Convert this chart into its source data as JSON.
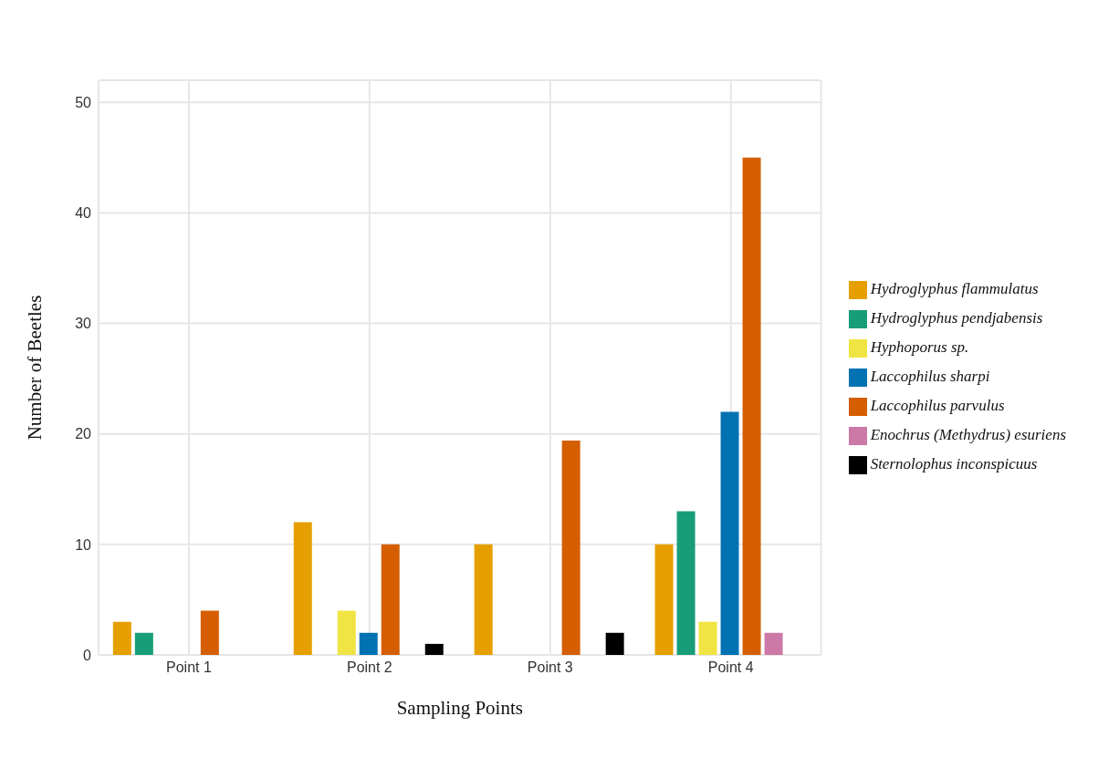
{
  "chart_data": {
    "type": "bar",
    "xlabel": "Sampling Points",
    "ylabel": "Number of Beetles",
    "categories": [
      "Point 1",
      "Point 2",
      "Point 3",
      "Point 4"
    ],
    "series": [
      {
        "name": "Hydroglyphus flammulatus",
        "color": "#e69f00",
        "values": [
          3,
          12,
          10,
          10
        ]
      },
      {
        "name": "Hydroglyphus pendjabensis",
        "color": "#179e78",
        "values": [
          2,
          null,
          null,
          13
        ]
      },
      {
        "name": "Hyphoporus sp.",
        "color": "#f0e442",
        "values": [
          null,
          4,
          null,
          3
        ]
      },
      {
        "name": "Laccophilus sharpi",
        "color": "#0072b2",
        "values": [
          null,
          2,
          null,
          22
        ]
      },
      {
        "name": "Laccophilus parvulus",
        "color": "#d55e00",
        "values": [
          4,
          10,
          19.4,
          45
        ]
      },
      {
        "name": "Enochrus (Methydrus) esuriens",
        "color": "#cc79a7",
        "values": [
          null,
          null,
          null,
          2
        ]
      },
      {
        "name": "Sternolophus inconspicuus",
        "color": "#000000",
        "values": [
          null,
          1,
          2,
          null
        ]
      }
    ],
    "ylim": [
      0,
      52
    ],
    "yticks": [
      0,
      10,
      20,
      30,
      40,
      50
    ],
    "grid": true,
    "legend": "right"
  }
}
